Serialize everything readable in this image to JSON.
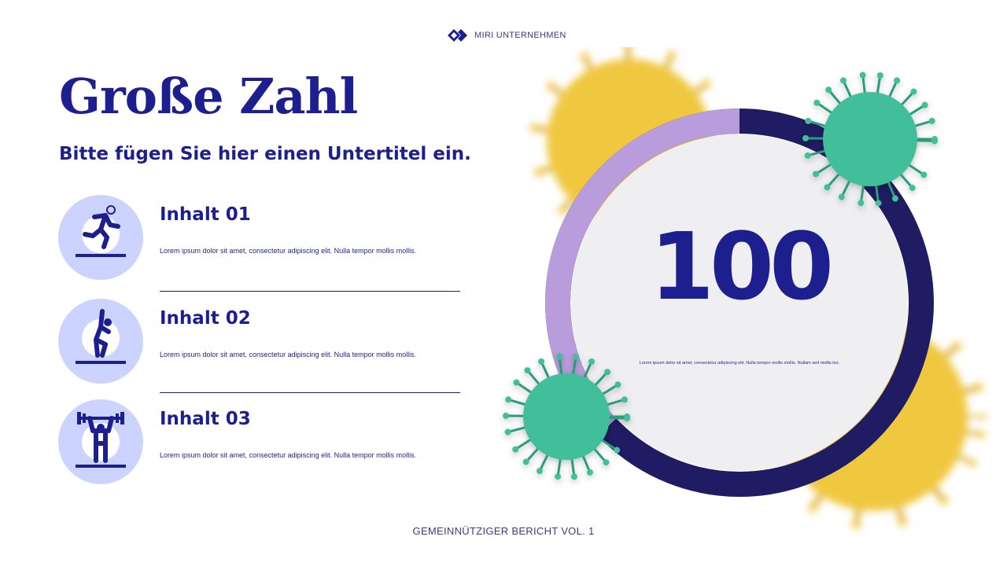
{
  "header": {
    "logo_text": "MIRI UNTERNEHMEN",
    "logo_icon": "diamond-logo-icon"
  },
  "title": "Große Zahl",
  "subtitle": "Bitte fügen Sie hier einen Untertitel ein.",
  "items": [
    {
      "heading": "Inhalt 01",
      "text": "Lorem ipsum dolor sit amet, consectetur adipiscing elit. Nulla tempor mollis mollis.",
      "icon": "running-person-icon"
    },
    {
      "heading": "Inhalt 02",
      "text": "Lorem ipsum dolor sit amet, consectetur adipiscing elit. Nulla tempor mollis mollis.",
      "icon": "stretching-person-icon"
    },
    {
      "heading": "Inhalt 03",
      "text": "Lorem ipsum dolor sit amet, consectetur adipiscing elit. Nulla tempor mollis mollis.",
      "icon": "weightlifting-person-icon"
    }
  ],
  "highlight": {
    "number": "100",
    "text": "Lorem ipsum dolor sit amet, consectetur adipiscing elit. Nulla tempor mollis mollis. Nullam sed mollis leo.",
    "ring_accent_fraction": 0.37
  },
  "colors": {
    "navy": "#1e1f8f",
    "ring_dark": "#1f1c63",
    "ring_accent": "#b99cdb",
    "icon_bg": "#cdd3ff",
    "virus_green": "#3fbf9a",
    "virus_yellow": "#f0c840"
  },
  "footer": "GEMEINNÜTZIGER BERICHT VOL. 1"
}
